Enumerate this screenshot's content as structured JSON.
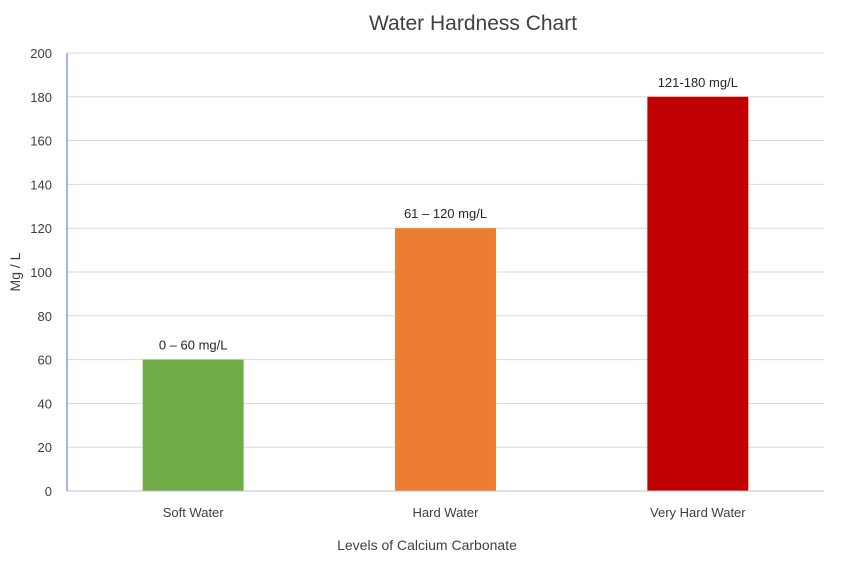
{
  "chart_data": {
    "type": "bar",
    "title": "Water Hardness Chart",
    "xlabel": "Levels of Calcium Carbonate",
    "ylabel": "Mg / L",
    "ylim": [
      0,
      200
    ],
    "yticks": [
      0,
      20,
      40,
      60,
      80,
      100,
      120,
      140,
      160,
      180,
      200
    ],
    "grid": true,
    "categories": [
      "Soft Water",
      "Hard Water",
      "Very Hard Water"
    ],
    "values": [
      60,
      120,
      180
    ],
    "data_labels": [
      "0 – 60 mg/L",
      "61 – 120 mg/L",
      "121-180 mg/L"
    ],
    "colors": [
      "#70ad47",
      "#ed7d31",
      "#c00000"
    ]
  }
}
